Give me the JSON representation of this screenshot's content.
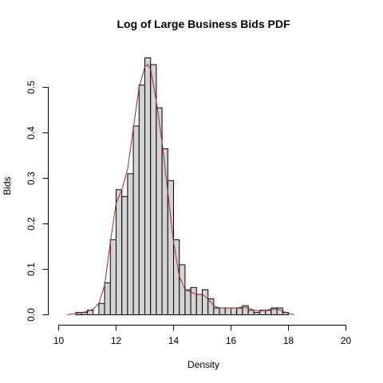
{
  "chart_data": {
    "type": "bar",
    "title": "Log of Large Business Bids PDF",
    "xlabel": "Density",
    "ylabel": "Bids",
    "xlim": [
      10,
      20
    ],
    "ylim": [
      0,
      0.565
    ],
    "x_ticks": [
      10,
      12,
      14,
      16,
      18,
      20
    ],
    "y_ticks": [
      0.0,
      0.1,
      0.2,
      0.3,
      0.4,
      0.5
    ],
    "x_tick_labels": [
      "10",
      "12",
      "14",
      "16",
      "18",
      "20"
    ],
    "y_tick_labels": [
      "0.0",
      "0.1",
      "0.2",
      "0.3",
      "0.4",
      "0.5"
    ],
    "grid": false,
    "bin_width": 0.2,
    "bins": [
      {
        "x0": 10.6,
        "x1": 10.8,
        "y": 0.005
      },
      {
        "x0": 10.8,
        "x1": 11.0,
        "y": 0.005
      },
      {
        "x0": 11.0,
        "x1": 11.2,
        "y": 0.01
      },
      {
        "x0": 11.2,
        "x1": 11.4,
        "y": 0.0
      },
      {
        "x0": 11.4,
        "x1": 11.6,
        "y": 0.025
      },
      {
        "x0": 11.6,
        "x1": 11.8,
        "y": 0.07
      },
      {
        "x0": 11.8,
        "x1": 12.0,
        "y": 0.165
      },
      {
        "x0": 12.0,
        "x1": 12.2,
        "y": 0.275
      },
      {
        "x0": 12.2,
        "x1": 12.4,
        "y": 0.26
      },
      {
        "x0": 12.4,
        "x1": 12.6,
        "y": 0.31
      },
      {
        "x0": 12.6,
        "x1": 12.8,
        "y": 0.415
      },
      {
        "x0": 12.8,
        "x1": 13.0,
        "y": 0.505
      },
      {
        "x0": 13.0,
        "x1": 13.2,
        "y": 0.565
      },
      {
        "x0": 13.2,
        "x1": 13.4,
        "y": 0.55
      },
      {
        "x0": 13.4,
        "x1": 13.6,
        "y": 0.455
      },
      {
        "x0": 13.6,
        "x1": 13.8,
        "y": 0.365
      },
      {
        "x0": 13.8,
        "x1": 14.0,
        "y": 0.295
      },
      {
        "x0": 14.0,
        "x1": 14.2,
        "y": 0.165
      },
      {
        "x0": 14.2,
        "x1": 14.4,
        "y": 0.11
      },
      {
        "x0": 14.4,
        "x1": 14.6,
        "y": 0.055
      },
      {
        "x0": 14.6,
        "x1": 14.8,
        "y": 0.06
      },
      {
        "x0": 14.8,
        "x1": 15.0,
        "y": 0.045
      },
      {
        "x0": 15.0,
        "x1": 15.2,
        "y": 0.055
      },
      {
        "x0": 15.2,
        "x1": 15.4,
        "y": 0.035
      },
      {
        "x0": 15.4,
        "x1": 15.6,
        "y": 0.015
      },
      {
        "x0": 15.6,
        "x1": 15.8,
        "y": 0.015
      },
      {
        "x0": 15.8,
        "x1": 16.0,
        "y": 0.015
      },
      {
        "x0": 16.0,
        "x1": 16.2,
        "y": 0.015
      },
      {
        "x0": 16.2,
        "x1": 16.4,
        "y": 0.015
      },
      {
        "x0": 16.4,
        "x1": 16.6,
        "y": 0.02
      },
      {
        "x0": 16.6,
        "x1": 16.8,
        "y": 0.01
      },
      {
        "x0": 16.8,
        "x1": 17.0,
        "y": 0.005
      },
      {
        "x0": 17.0,
        "x1": 17.2,
        "y": 0.01
      },
      {
        "x0": 17.2,
        "x1": 17.4,
        "y": 0.01
      },
      {
        "x0": 17.4,
        "x1": 17.6,
        "y": 0.015
      },
      {
        "x0": 17.6,
        "x1": 17.8,
        "y": 0.015
      },
      {
        "x0": 17.8,
        "x1": 18.0,
        "y": 0.005
      }
    ],
    "density_curve": {
      "color": "#a52a2a",
      "x": [
        10.3,
        10.6,
        10.9,
        11.2,
        11.4,
        11.6,
        11.8,
        12.0,
        12.2,
        12.4,
        12.6,
        12.8,
        13.0,
        13.1,
        13.2,
        13.4,
        13.6,
        13.8,
        14.0,
        14.2,
        14.4,
        14.6,
        14.8,
        15.0,
        15.2,
        15.4,
        15.6,
        15.8,
        16.0,
        16.2,
        16.4,
        16.6,
        16.8,
        17.0,
        17.2,
        17.4,
        17.6,
        17.8,
        18.0,
        18.2
      ],
      "y": [
        0.0,
        0.003,
        0.006,
        0.012,
        0.025,
        0.065,
        0.16,
        0.245,
        0.275,
        0.32,
        0.41,
        0.5,
        0.545,
        0.55,
        0.54,
        0.47,
        0.38,
        0.27,
        0.16,
        0.085,
        0.055,
        0.05,
        0.045,
        0.045,
        0.035,
        0.02,
        0.015,
        0.015,
        0.015,
        0.015,
        0.017,
        0.015,
        0.01,
        0.008,
        0.01,
        0.012,
        0.012,
        0.008,
        0.003,
        0.0
      ]
    },
    "colors": {
      "bar_fill": "#d3d3d3",
      "bar_stroke": "#000000",
      "density": "#a52a2a"
    }
  }
}
